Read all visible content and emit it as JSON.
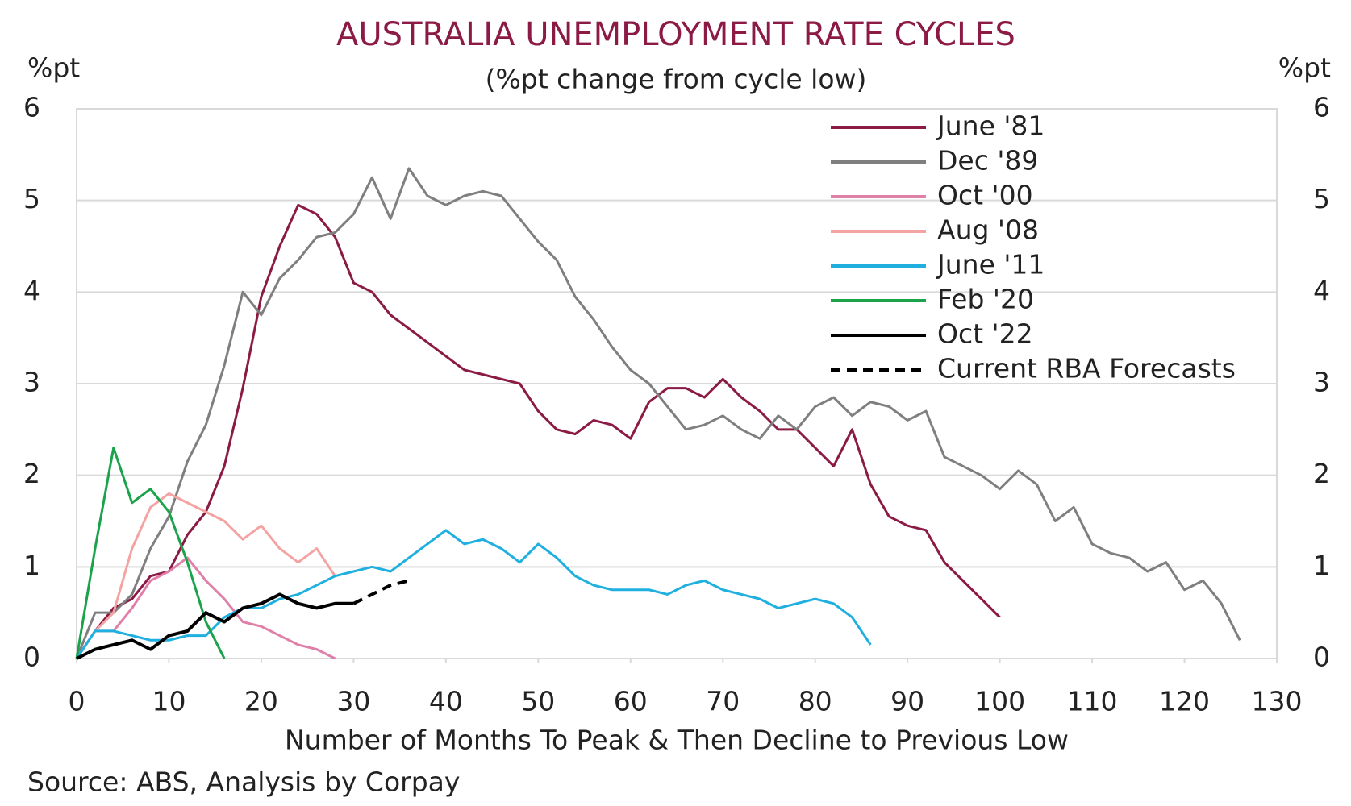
{
  "chart_data": {
    "type": "line",
    "title": "AUSTRALIA UNEMPLOYMENT RATE CYCLES",
    "subtitle": "(%pt change from cycle low)",
    "ylabel": "%pt",
    "y2label": "%pt",
    "xlabel": "Number of Months To Peak & Then Decline to Previous Low",
    "source": "Source: ABS, Analysis by Corpay",
    "x": [
      0,
      2,
      4,
      6,
      8,
      10,
      12,
      14,
      16,
      18,
      20,
      22,
      24,
      26,
      28,
      30,
      32,
      34,
      36,
      38,
      40,
      42,
      44,
      46,
      48,
      50,
      52,
      54,
      56,
      58,
      60,
      62,
      64,
      66,
      68,
      70,
      72,
      74,
      76,
      78,
      80,
      82,
      84,
      86,
      88,
      90,
      92,
      94,
      96,
      98,
      100,
      102,
      104,
      106,
      108,
      110,
      112,
      114,
      116,
      118,
      120,
      122,
      124,
      126
    ],
    "xlim": [
      0,
      130
    ],
    "xticks": [
      0,
      10,
      20,
      30,
      40,
      50,
      60,
      70,
      80,
      90,
      100,
      110,
      120,
      130
    ],
    "ylim": [
      0,
      6
    ],
    "yticks": [
      0,
      1,
      2,
      3,
      4,
      5,
      6
    ],
    "y2lim": [
      0,
      6
    ],
    "y2ticks": [
      0,
      1,
      2,
      3,
      4,
      5,
      6
    ],
    "grid": true,
    "legend": "top-right",
    "series": [
      {
        "name": "June '81",
        "color": "#8b1a45",
        "values": [
          0,
          0.3,
          0.55,
          0.65,
          0.9,
          0.95,
          1.35,
          1.6,
          2.1,
          2.95,
          3.95,
          4.5,
          4.95,
          4.85,
          4.6,
          4.1,
          4.0,
          3.75,
          3.6,
          3.45,
          3.3,
          3.15,
          3.1,
          3.05,
          3.0,
          2.7,
          2.5,
          2.45,
          2.6,
          2.55,
          2.4,
          2.8,
          2.95,
          2.95,
          2.85,
          3.05,
          2.85,
          2.7,
          2.5,
          2.5,
          2.3,
          2.1,
          2.5,
          1.9,
          1.55,
          1.45,
          1.4,
          1.05,
          0.85,
          0.65,
          0.45,
          null,
          null,
          null,
          null,
          null,
          null,
          null,
          null,
          null,
          null,
          null,
          null,
          null
        ]
      },
      {
        "name": "Dec '89",
        "color": "#7f7f7f",
        "values": [
          0,
          0.5,
          0.5,
          0.7,
          1.2,
          1.55,
          2.15,
          2.55,
          3.2,
          4.0,
          3.75,
          4.15,
          4.35,
          4.6,
          4.65,
          4.85,
          5.25,
          4.8,
          5.35,
          5.05,
          4.95,
          5.05,
          5.1,
          5.05,
          4.8,
          4.55,
          4.35,
          3.95,
          3.7,
          3.4,
          3.15,
          3.0,
          2.75,
          2.5,
          2.55,
          2.65,
          2.5,
          2.4,
          2.65,
          2.5,
          2.75,
          2.85,
          2.65,
          2.8,
          2.75,
          2.6,
          2.7,
          2.2,
          2.1,
          2.0,
          1.85,
          2.05,
          1.9,
          1.5,
          1.65,
          1.25,
          1.15,
          1.1,
          0.95,
          1.05,
          0.75,
          0.85,
          0.6,
          0.2
        ]
      },
      {
        "name": "Oct '00",
        "color": "#e07fa8",
        "values": [
          0,
          0.3,
          0.3,
          0.55,
          0.85,
          0.95,
          1.1,
          0.85,
          0.65,
          0.4,
          0.35,
          0.25,
          0.15,
          0.1,
          0,
          null,
          null,
          null,
          null,
          null,
          null,
          null,
          null,
          null,
          null,
          null,
          null,
          null,
          null,
          null,
          null,
          null,
          null,
          null,
          null,
          null,
          null,
          null,
          null,
          null,
          null,
          null,
          null,
          null,
          null,
          null,
          null,
          null,
          null,
          null,
          null,
          null,
          null,
          null,
          null,
          null,
          null,
          null,
          null,
          null,
          null,
          null,
          null,
          null
        ]
      },
      {
        "name": "Aug '08",
        "color": "#f4a3a3",
        "values": [
          0,
          0.3,
          0.5,
          1.2,
          1.65,
          1.8,
          1.7,
          1.6,
          1.5,
          1.3,
          1.45,
          1.2,
          1.05,
          1.2,
          0.9,
          null,
          null,
          null,
          null,
          null,
          null,
          null,
          null,
          null,
          null,
          null,
          null,
          null,
          null,
          null,
          null,
          null,
          null,
          null,
          null,
          null,
          null,
          null,
          null,
          null,
          null,
          null,
          null,
          null,
          null,
          null,
          null,
          null,
          null,
          null,
          null,
          null,
          null,
          null,
          null,
          null,
          null,
          null,
          null,
          null,
          null,
          null,
          null,
          null
        ]
      },
      {
        "name": "June '11",
        "color": "#1fb0e0",
        "values": [
          0,
          0.3,
          0.3,
          0.25,
          0.2,
          0.2,
          0.25,
          0.25,
          0.45,
          0.55,
          0.55,
          0.65,
          0.7,
          0.8,
          0.9,
          0.95,
          1.0,
          0.95,
          1.1,
          1.25,
          1.4,
          1.25,
          1.3,
          1.2,
          1.05,
          1.25,
          1.1,
          0.9,
          0.8,
          0.75,
          0.75,
          0.75,
          0.7,
          0.8,
          0.85,
          0.75,
          0.7,
          0.65,
          0.55,
          0.6,
          0.65,
          0.6,
          0.45,
          0.15,
          null,
          null,
          null,
          null,
          null,
          null,
          null,
          null,
          null,
          null,
          null,
          null,
          null,
          null,
          null,
          null,
          null,
          null,
          null,
          null
        ]
      },
      {
        "name": "Feb '20",
        "color": "#1aa34a",
        "values": [
          0,
          1.2,
          2.3,
          1.7,
          1.85,
          1.6,
          1.05,
          0.4,
          0,
          null,
          null,
          null,
          null,
          null,
          null,
          null,
          null,
          null,
          null,
          null,
          null,
          null,
          null,
          null,
          null,
          null,
          null,
          null,
          null,
          null,
          null,
          null,
          null,
          null,
          null,
          null,
          null,
          null,
          null,
          null,
          null,
          null,
          null,
          null,
          null,
          null,
          null,
          null,
          null,
          null,
          null,
          null,
          null,
          null,
          null,
          null,
          null,
          null,
          null,
          null,
          null,
          null,
          null,
          null
        ]
      },
      {
        "name": "Oct '22",
        "color": "#000000",
        "width": 4,
        "values": [
          0,
          0.1,
          0.15,
          0.2,
          0.1,
          0.25,
          0.3,
          0.5,
          0.4,
          0.55,
          0.6,
          0.7,
          0.6,
          0.55,
          0.6,
          0.6,
          null,
          null,
          null,
          null,
          null,
          null,
          null,
          null,
          null,
          null,
          null,
          null,
          null,
          null,
          null,
          null,
          null,
          null,
          null,
          null,
          null,
          null,
          null,
          null,
          null,
          null,
          null,
          null,
          null,
          null,
          null,
          null,
          null,
          null,
          null,
          null,
          null,
          null,
          null,
          null,
          null,
          null,
          null,
          null,
          null,
          null,
          null,
          null
        ]
      },
      {
        "name": "Current RBA Forecasts",
        "color": "#000000",
        "width": 4,
        "style": "dashed",
        "values": [
          null,
          null,
          null,
          null,
          null,
          null,
          null,
          null,
          null,
          null,
          null,
          null,
          null,
          null,
          null,
          0.6,
          0.7,
          0.8,
          0.85,
          null,
          null,
          null,
          null,
          null,
          null,
          null,
          null,
          null,
          null,
          null,
          null,
          null,
          null,
          null,
          null,
          null,
          null,
          null,
          null,
          null,
          null,
          null,
          null,
          null,
          null,
          null,
          null,
          null,
          null,
          null,
          null,
          null,
          null,
          null,
          null,
          null,
          null,
          null,
          null,
          null,
          null,
          null,
          null,
          null
        ]
      }
    ]
  }
}
